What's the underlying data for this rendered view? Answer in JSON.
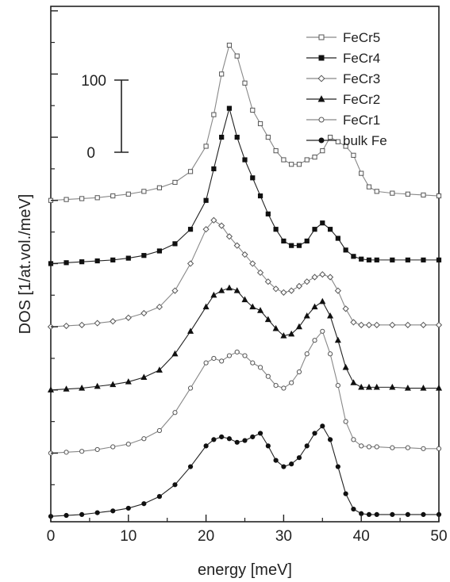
{
  "chart_data": {
    "type": "line",
    "title": "",
    "xlabel": "energy [meV]",
    "ylabel": "DOS [1/at.vol./meV]",
    "xlim": [
      0,
      50
    ],
    "x_ticks": [
      0,
      10,
      20,
      30,
      40,
      50
    ],
    "grid": false,
    "legend_position": "top-right",
    "y_ticks_labeled": false,
    "stacked_offset_between_series": 70,
    "scale_bar": {
      "low_label": "0",
      "high_label": "100",
      "low": 0,
      "high": 100
    },
    "x": [
      0,
      2,
      4,
      6,
      8,
      10,
      12,
      14,
      16,
      18,
      20,
      21,
      22,
      23,
      24,
      25,
      26,
      27,
      28,
      29,
      30,
      31,
      32,
      33,
      34,
      35,
      36,
      37,
      38,
      39,
      40,
      41,
      42,
      44,
      46,
      48,
      50
    ],
    "series": [
      {
        "name": "FeCr5",
        "marker": "open-square",
        "offset": 350,
        "values": [
          0,
          1,
          2,
          3,
          5,
          7,
          10,
          14,
          20,
          32,
          60,
          95,
          140,
          172,
          160,
          130,
          100,
          85,
          70,
          55,
          45,
          40,
          40,
          45,
          48,
          55,
          70,
          65,
          60,
          50,
          30,
          15,
          10,
          8,
          7,
          6,
          5
        ]
      },
      {
        "name": "FeCr4",
        "marker": "filled-square",
        "offset": 280,
        "values": [
          0,
          1,
          2,
          3,
          4,
          6,
          9,
          14,
          22,
          38,
          70,
          105,
          140,
          172,
          140,
          115,
          95,
          75,
          55,
          38,
          25,
          20,
          20,
          25,
          38,
          45,
          38,
          28,
          15,
          8,
          5,
          4,
          4,
          4,
          4,
          4,
          4
        ]
      },
      {
        "name": "FeCr3",
        "marker": "open-diamond",
        "offset": 210,
        "values": [
          0,
          1,
          2,
          4,
          6,
          10,
          15,
          22,
          40,
          70,
          108,
          118,
          112,
          100,
          90,
          80,
          70,
          60,
          50,
          42,
          38,
          40,
          45,
          50,
          55,
          58,
          55,
          40,
          20,
          5,
          2,
          2,
          2,
          2,
          2,
          2,
          2
        ]
      },
      {
        "name": "FeCr2",
        "marker": "filled-triangle",
        "offset": 140,
        "values": [
          0,
          1,
          2,
          4,
          6,
          9,
          14,
          22,
          40,
          65,
          92,
          105,
          110,
          113,
          110,
          100,
          92,
          88,
          78,
          68,
          60,
          62,
          70,
          82,
          92,
          98,
          82,
          55,
          25,
          8,
          3,
          3,
          3,
          3,
          2,
          2,
          2
        ]
      },
      {
        "name": "FeCr1",
        "marker": "open-circle",
        "offset": 70,
        "values": [
          0,
          1,
          2,
          4,
          7,
          10,
          16,
          25,
          45,
          72,
          100,
          105,
          102,
          108,
          112,
          108,
          100,
          95,
          85,
          75,
          72,
          78,
          90,
          110,
          125,
          135,
          110,
          75,
          35,
          15,
          8,
          7,
          7,
          6,
          6,
          5,
          5
        ]
      },
      {
        "name": "bulk Fe",
        "marker": "filled-circle",
        "offset": 0,
        "values": [
          0,
          1,
          2,
          4,
          6,
          9,
          14,
          22,
          35,
          55,
          78,
          85,
          88,
          86,
          82,
          84,
          88,
          92,
          78,
          62,
          55,
          58,
          65,
          78,
          92,
          100,
          85,
          55,
          25,
          8,
          3,
          2,
          2,
          2,
          2,
          2,
          2
        ]
      }
    ]
  }
}
